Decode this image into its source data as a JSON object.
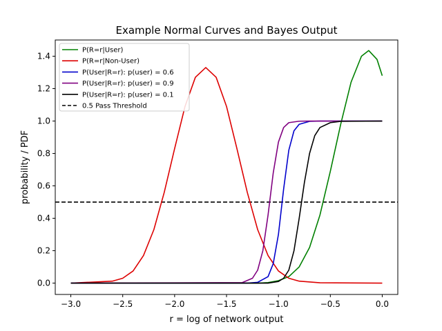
{
  "chart_data": {
    "type": "line",
    "title": "Example Normal Curves and Bayes Output",
    "xlabel": "r = log of network output",
    "ylabel": "probability / PDF",
    "xlim": [
      -3.15,
      0.15
    ],
    "ylim": [
      -0.07,
      1.5
    ],
    "xticks": [
      -3.0,
      -2.5,
      -2.0,
      -1.5,
      -1.0,
      -0.5,
      0.0
    ],
    "xtick_labels": [
      "−3.0",
      "−2.5",
      "−2.0",
      "−1.5",
      "−1.0",
      "−0.5",
      "0.0"
    ],
    "yticks": [
      0.0,
      0.2,
      0.4,
      0.6,
      0.8,
      1.0,
      1.2,
      1.4
    ],
    "ytick_labels": [
      "0.0",
      "0.2",
      "0.4",
      "0.6",
      "0.8",
      "1.0",
      "1.2",
      "1.4"
    ],
    "grid": false,
    "legend_position": "top-left",
    "series": [
      {
        "name": "P(R=r|User)",
        "color": "#008000",
        "dash": "solid",
        "x": [
          -3.0,
          -1.2,
          -1.1,
          -1.0,
          -0.9,
          -0.8,
          -0.7,
          -0.6,
          -0.5,
          -0.4,
          -0.3,
          -0.2,
          -0.13,
          -0.05,
          0.0
        ],
        "y": [
          0.0,
          0.0,
          0.003,
          0.015,
          0.04,
          0.1,
          0.22,
          0.42,
          0.69,
          0.98,
          1.24,
          1.4,
          1.435,
          1.38,
          1.28
        ]
      },
      {
        "name": "P(R=r|Non-User)",
        "color": "#dd0000",
        "dash": "solid",
        "x": [
          -3.0,
          -2.6,
          -2.5,
          -2.4,
          -2.3,
          -2.2,
          -2.1,
          -2.0,
          -1.9,
          -1.8,
          -1.7,
          -1.6,
          -1.5,
          -1.4,
          -1.3,
          -1.2,
          -1.1,
          -1.0,
          -0.9,
          -0.8,
          -0.6,
          0.0
        ],
        "y": [
          0.0,
          0.012,
          0.03,
          0.075,
          0.17,
          0.33,
          0.56,
          0.83,
          1.09,
          1.27,
          1.33,
          1.27,
          1.09,
          0.83,
          0.56,
          0.33,
          0.17,
          0.075,
          0.03,
          0.012,
          0.002,
          0.0
        ]
      },
      {
        "name": "P(User|R=r): p(user) = 0.6",
        "color": "#0000cc",
        "dash": "solid",
        "x": [
          -3.0,
          -1.3,
          -1.2,
          -1.1,
          -1.05,
          -1.0,
          -0.95,
          -0.9,
          -0.85,
          -0.8,
          -0.7,
          -0.6,
          -0.5,
          0.0
        ],
        "y": [
          0.0,
          0.0,
          0.005,
          0.04,
          0.12,
          0.3,
          0.58,
          0.82,
          0.94,
          0.98,
          0.998,
          1.0,
          1.0,
          1.0
        ]
      },
      {
        "name": "P(User|R=r): p(user) = 0.9",
        "color": "#800080",
        "dash": "solid",
        "x": [
          -3.0,
          -1.35,
          -1.25,
          -1.2,
          -1.15,
          -1.1,
          -1.05,
          -1.0,
          -0.95,
          -0.9,
          -0.8,
          -0.7,
          0.0
        ],
        "y": [
          0.0,
          0.003,
          0.03,
          0.08,
          0.2,
          0.42,
          0.68,
          0.87,
          0.96,
          0.99,
          0.999,
          1.0,
          1.0
        ]
      },
      {
        "name": "P(User|R=r): p(user) = 0.1",
        "color": "#000000",
        "dash": "solid",
        "x": [
          -3.0,
          -1.1,
          -1.0,
          -0.95,
          -0.9,
          -0.85,
          -0.8,
          -0.75,
          -0.7,
          -0.65,
          -0.6,
          -0.5,
          -0.4,
          0.0
        ],
        "y": [
          0.0,
          0.0,
          0.01,
          0.03,
          0.08,
          0.2,
          0.4,
          0.62,
          0.8,
          0.91,
          0.96,
          0.99,
          0.998,
          1.0
        ]
      },
      {
        "name": "0.5 Pass Threshold",
        "color": "#000000",
        "dash": "dashed",
        "x": [
          -3.15,
          0.15
        ],
        "y": [
          0.5,
          0.5
        ]
      }
    ]
  }
}
